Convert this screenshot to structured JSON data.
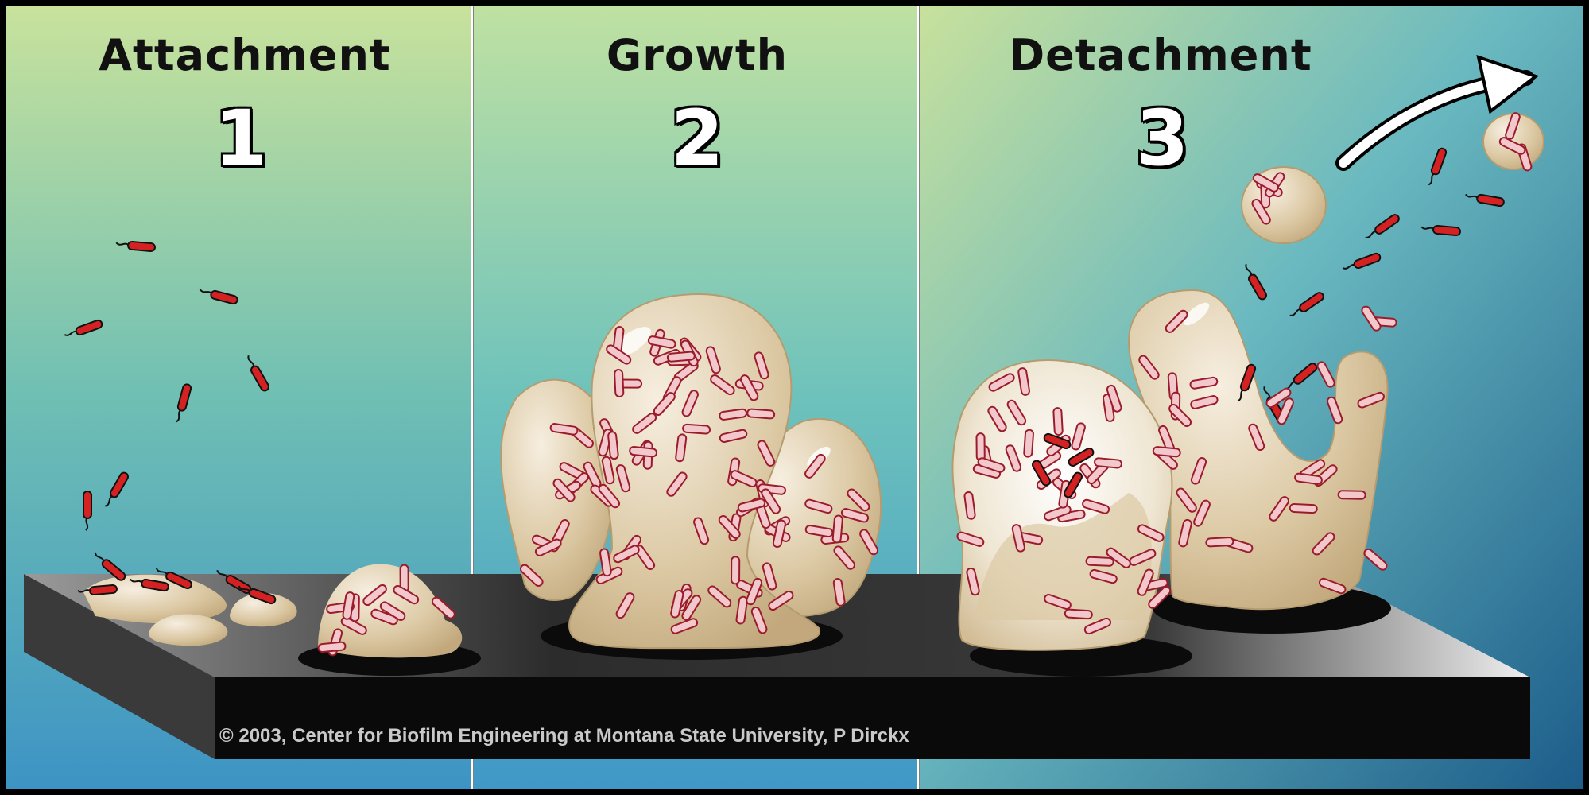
{
  "panels": [
    {
      "title": "Attachment",
      "number": "1"
    },
    {
      "title": "Growth",
      "number": "2"
    },
    {
      "title": "Detachment",
      "number": "3"
    }
  ],
  "credit": "© 2003, Center for Biofilm Engineering at Montana State University, P Dirckx",
  "colors": {
    "bacterium": "#d42222",
    "biofilm": "#dcc9a4",
    "surface": "#5a5a5a",
    "surface_edge": "#0a0a0a",
    "background_top": "#c4e09a",
    "background_bottom": "#2a7fb5"
  }
}
